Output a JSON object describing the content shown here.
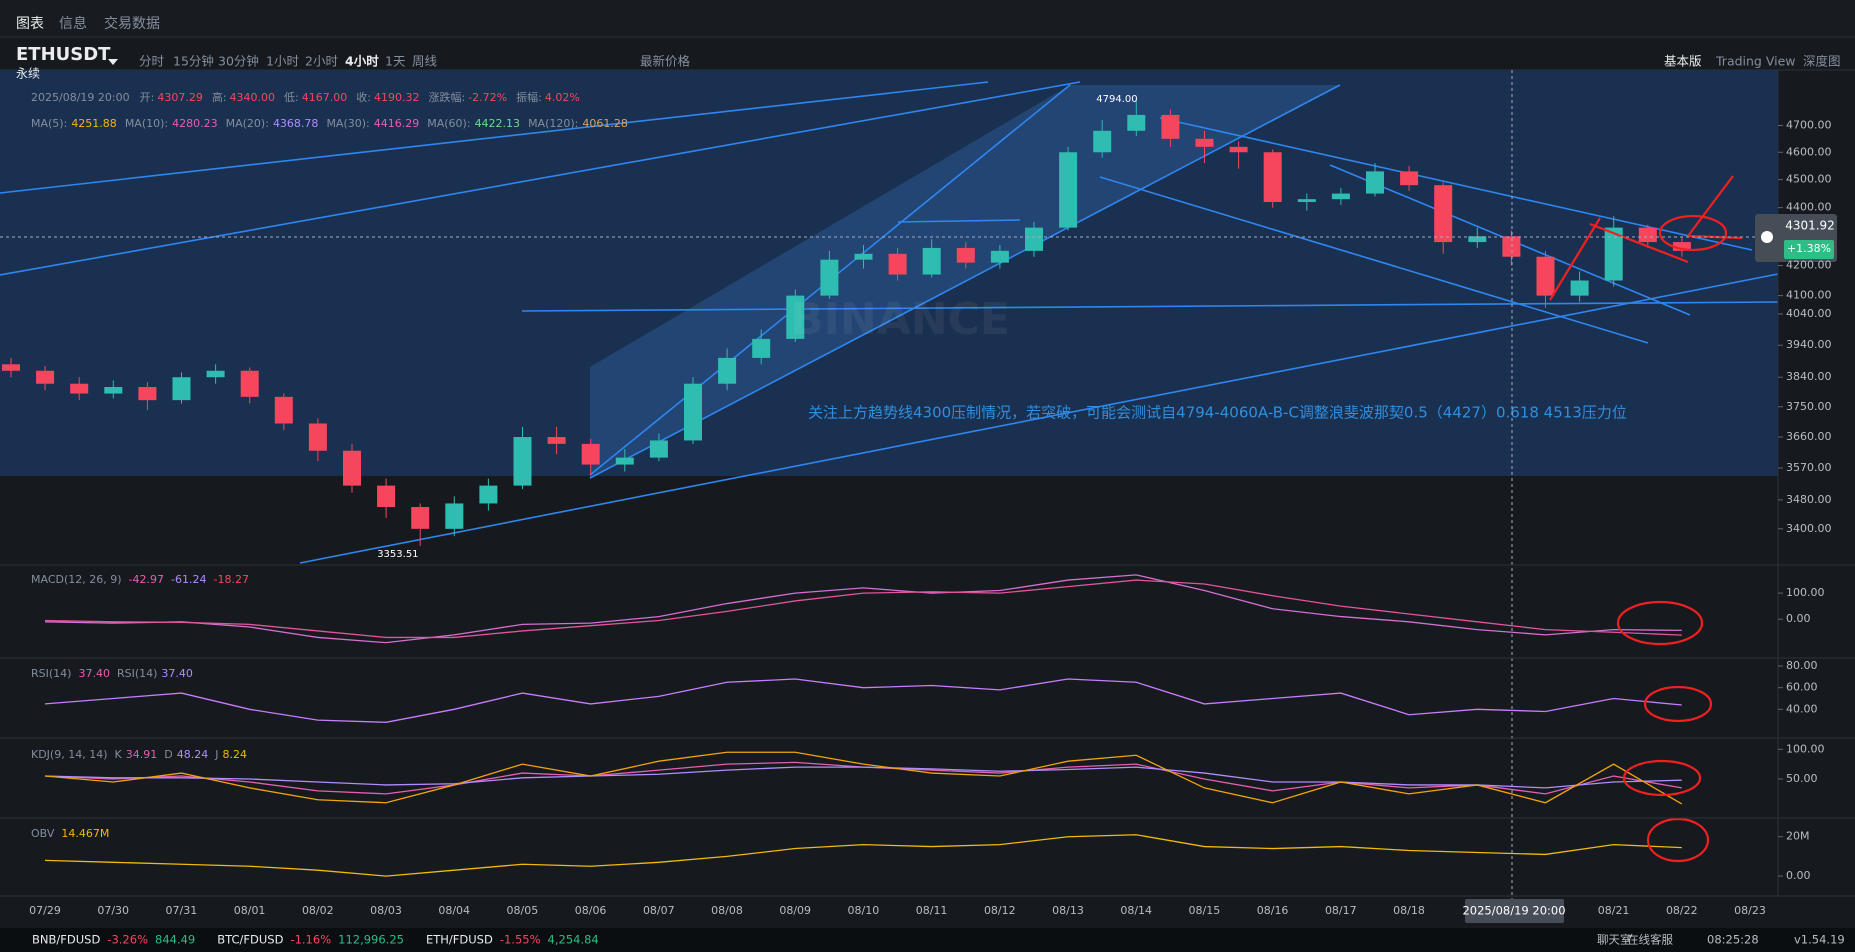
{
  "tabs": [
    "图表",
    "信息",
    "交易数据"
  ],
  "symbol": "ETHUSDT",
  "contract": "永续",
  "intervals": [
    "分时",
    "15分钟",
    "30分钟",
    "1小时",
    "2小时",
    "4小时",
    "1天",
    "周线",
    "最新价格"
  ],
  "views": [
    "基本版",
    "Trading View",
    "深度图"
  ],
  "ohlc_info": {
    "time": "2025/08/19 20:00",
    "items": [
      {
        "label": "开:",
        "value": "4307.29"
      },
      {
        "label": "高:",
        "value": "4340.00"
      },
      {
        "label": "低:",
        "value": "4167.00"
      },
      {
        "label": "收:",
        "value": "4190.32"
      },
      {
        "label": "涨跌幅:",
        "value": "-2.72%"
      },
      {
        "label": "振幅:",
        "value": "4.02%"
      }
    ]
  },
  "ma_info": [
    {
      "label": "MA(5):",
      "value": "4251.88",
      "color": "#f0b90b"
    },
    {
      "label": "MA(10):",
      "value": "4280.23",
      "color": "#e45fb1"
    },
    {
      "label": "MA(20):",
      "value": "4368.78",
      "color": "#b18cff"
    },
    {
      "label": "MA(30):",
      "value": "4416.29",
      "color": "#e45fb1"
    },
    {
      "label": "MA(60):",
      "value": "4422.13",
      "color": "#6fd98f"
    },
    {
      "label": "MA(120):",
      "value": "4061.28",
      "color": "#d8a36c"
    }
  ],
  "x_axis": {
    "categories": [
      "07/29",
      "07/30",
      "07/31",
      "08/01",
      "08/02",
      "08/03",
      "08/04",
      "08/05",
      "08/06",
      "08/07",
      "08/08",
      "08/09",
      "08/10",
      "08/11",
      "08/12",
      "08/13",
      "08/14",
      "08/15",
      "08/16",
      "08/17",
      "08/18",
      null,
      null,
      "08/21",
      "08/22",
      "08/23"
    ]
  },
  "chart_data": [
    {
      "type": "candlestick",
      "log_scale": true,
      "up_color": "#2ebdb0",
      "down_color": "#f6465d",
      "ylim": [
        3308,
        4863
      ],
      "yticks": [
        {
          "value": 4700,
          "label": "4700.00"
        },
        {
          "value": 4600,
          "label": "4600.00"
        },
        {
          "value": 4500,
          "label": "4500.00"
        },
        {
          "value": 4400,
          "label": "4400.00"
        },
        {
          "value": 4200,
          "label": "4200.00"
        },
        {
          "value": 4100,
          "label": "4100.00"
        },
        {
          "value": 4040,
          "label": "4040.00"
        },
        {
          "value": 3940,
          "label": "3940.00"
        },
        {
          "value": 3840,
          "label": "3840.00"
        },
        {
          "value": 3750,
          "label": "3750.00"
        },
        {
          "value": 3660,
          "label": "3660.00"
        },
        {
          "value": 3570,
          "label": "3570.00"
        },
        {
          "value": 3480,
          "label": "3480.00"
        },
        {
          "value": 3400,
          "label": "3400.00"
        }
      ],
      "candles": [
        [
          3880,
          3900,
          3840,
          3860
        ],
        [
          3860,
          3875,
          3800,
          3820
        ],
        [
          3820,
          3840,
          3770,
          3790
        ],
        [
          3790,
          3830,
          3775,
          3810
        ],
        [
          3810,
          3825,
          3740,
          3770
        ],
        [
          3770,
          3855,
          3760,
          3840
        ],
        [
          3840,
          3880,
          3820,
          3860
        ],
        [
          3860,
          3870,
          3760,
          3780
        ],
        [
          3780,
          3790,
          3680,
          3700
        ],
        [
          3700,
          3715,
          3590,
          3620
        ],
        [
          3620,
          3640,
          3500,
          3520
        ],
        [
          3520,
          3540,
          3430,
          3460
        ],
        [
          3460,
          3470,
          3353.51,
          3400
        ],
        [
          3400,
          3490,
          3380,
          3470
        ],
        [
          3470,
          3540,
          3450,
          3520
        ],
        [
          3520,
          3690,
          3510,
          3660
        ],
        [
          3660,
          3690,
          3610,
          3640
        ],
        [
          3640,
          3655,
          3550,
          3580
        ],
        [
          3580,
          3625,
          3560,
          3600
        ],
        [
          3600,
          3670,
          3590,
          3650
        ],
        [
          3650,
          3840,
          3640,
          3820
        ],
        [
          3820,
          3930,
          3800,
          3900
        ],
        [
          3900,
          3990,
          3880,
          3960
        ],
        [
          3960,
          4120,
          3950,
          4100
        ],
        [
          4100,
          4250,
          4090,
          4220
        ],
        [
          4220,
          4270,
          4190,
          4240
        ],
        [
          4240,
          4260,
          4150,
          4170
        ],
        [
          4170,
          4290,
          4160,
          4260
        ],
        [
          4260,
          4280,
          4190,
          4210
        ],
        [
          4210,
          4270,
          4190,
          4250
        ],
        [
          4250,
          4350,
          4230,
          4330
        ],
        [
          4330,
          4620,
          4320,
          4600
        ],
        [
          4600,
          4720,
          4580,
          4680
        ],
        [
          4680,
          4794,
          4660,
          4740
        ],
        [
          4740,
          4760,
          4620,
          4650
        ],
        [
          4650,
          4680,
          4560,
          4620
        ],
        [
          4620,
          4640,
          4540,
          4600
        ],
        [
          4600,
          4610,
          4400,
          4420
        ],
        [
          4420,
          4450,
          4390,
          4430
        ],
        [
          4430,
          4470,
          4410,
          4450
        ],
        [
          4450,
          4560,
          4440,
          4530
        ],
        [
          4530,
          4550,
          4460,
          4480
        ],
        [
          4480,
          4490,
          4240,
          4280
        ],
        [
          4280,
          4330,
          4260,
          4300
        ],
        [
          4300,
          4320,
          4200,
          4230
        ],
        [
          4230,
          4250,
          4060,
          4100
        ],
        [
          4100,
          4180,
          4080,
          4150
        ],
        [
          4150,
          4370,
          4130,
          4330
        ],
        [
          4330,
          4340,
          4260,
          4280
        ],
        [
          4280,
          4300,
          4230,
          4250
        ]
      ],
      "high_label": "4794.00",
      "low_label": "3353.51",
      "watermark": "BINANCE",
      "annotation": "关注上方趋势线4300压制情况，若突破，可能会测试自4794-4060A-B-C调整浪斐波那契0.5（4427）0.618 4513压力位"
    },
    {
      "type": "line",
      "title": "MACD(12, 26, 9)",
      "readouts": [
        {
          "value": "-42.97",
          "color": "#e45fb1"
        },
        {
          "value": "-61.24",
          "color": "#b18cff"
        },
        {
          "value": "-18.27",
          "color": "#f6465d"
        }
      ],
      "ylim": [
        -145,
        204
      ],
      "yticks": [
        {
          "value": 100,
          "label": "100.00"
        },
        {
          "value": 0,
          "label": "0.00"
        }
      ],
      "series": [
        {
          "color": "#d36fd0",
          "values": [
            -10,
            -15,
            -10,
            -30,
            -70,
            -90,
            -60,
            -20,
            -15,
            10,
            60,
            100,
            120,
            100,
            110,
            150,
            170,
            110,
            40,
            10,
            -10,
            -40,
            -60,
            -40,
            -43,
            null
          ]
        },
        {
          "color": "#e0559b",
          "values": [
            -5,
            -10,
            -12,
            -20,
            -45,
            -70,
            -70,
            -45,
            -25,
            -5,
            30,
            70,
            100,
            105,
            100,
            125,
            150,
            135,
            90,
            50,
            20,
            -10,
            -40,
            -50,
            -61,
            null
          ]
        }
      ]
    },
    {
      "type": "line",
      "title": "RSI(14)",
      "readouts": [
        {
          "value": "37.40",
          "color": "#e45fb1"
        },
        {
          "label": "RSI(14)",
          "value": "37.40",
          "color": "#b18cff"
        }
      ],
      "ylim": [
        14.4,
        85.6
      ],
      "yticks": [
        {
          "value": 80,
          "label": "80.00"
        },
        {
          "value": 60,
          "label": "60.00"
        },
        {
          "value": 40,
          "label": "40.00"
        }
      ],
      "series": [
        {
          "color": "#c77dff",
          "values": [
            45,
            50,
            55,
            40,
            30,
            28,
            40,
            55,
            45,
            52,
            65,
            68,
            60,
            62,
            58,
            68,
            65,
            45,
            50,
            55,
            35,
            40,
            38,
            50,
            44,
            null
          ]
        }
      ]
    },
    {
      "type": "line",
      "title": "KDJ(9, 14, 14)",
      "readouts": [
        {
          "label": "K",
          "value": "34.91",
          "color": "#e45fb1"
        },
        {
          "label": "D",
          "value": "48.24",
          "color": "#b18cff"
        },
        {
          "label": "J",
          "value": "8.24",
          "color": "#f0b90b"
        }
      ],
      "ylim": [
        -14,
        114
      ],
      "yticks": [
        {
          "value": 100,
          "label": "100.00"
        },
        {
          "value": 50,
          "label": "50.00"
        }
      ],
      "series": [
        {
          "color": "#e45fb1",
          "values": [
            55,
            50,
            55,
            45,
            30,
            25,
            40,
            60,
            55,
            65,
            75,
            78,
            70,
            65,
            60,
            70,
            75,
            50,
            30,
            45,
            35,
            40,
            25,
            55,
            35,
            null
          ]
        },
        {
          "color": "#b18cff",
          "values": [
            55,
            52,
            52,
            50,
            45,
            40,
            42,
            52,
            55,
            58,
            65,
            70,
            70,
            67,
            63,
            66,
            70,
            60,
            45,
            45,
            40,
            40,
            35,
            45,
            48,
            null
          ]
        },
        {
          "color": "#f0a30b",
          "values": [
            55,
            45,
            60,
            35,
            15,
            10,
            40,
            75,
            55,
            80,
            95,
            95,
            75,
            60,
            55,
            80,
            90,
            35,
            10,
            45,
            25,
            40,
            10,
            75,
            8,
            null
          ]
        }
      ]
    },
    {
      "type": "line",
      "title": "OBV",
      "readouts": [
        {
          "value": "14.467M",
          "color": "#f0b90b"
        }
      ],
      "ylim": [
        -9100000,
        28500000
      ],
      "yticks": [
        {
          "value": 20000000,
          "label": "20M"
        },
        {
          "value": 0,
          "label": "0.00"
        }
      ],
      "series": [
        {
          "color": "#f0b90b",
          "values": [
            8000000,
            7000000,
            6000000,
            5000000,
            3000000,
            0,
            3000000,
            6000000,
            5000000,
            7000000,
            10000000,
            14000000,
            16000000,
            15000000,
            16000000,
            20000000,
            21000000,
            15000000,
            14000000,
            15000000,
            13000000,
            12000000,
            11000000,
            16000000,
            14467000,
            null
          ]
        }
      ]
    }
  ],
  "price_tag": {
    "price": "4301.92",
    "change": "+1.38%"
  },
  "crosshair_time": "2025/08/19 20:00",
  "ticker": [
    {
      "pair": "BNB/FDUSD",
      "change": "-3.26%",
      "price": "844.49"
    },
    {
      "pair": "BTC/FDUSD",
      "change": "-1.16%",
      "price": "112,996.25"
    },
    {
      "pair": "ETH/FDUSD",
      "change": "-1.55%",
      "price": "4,254.84"
    }
  ],
  "footer": {
    "chat": "聊天室",
    "support": "在线客服",
    "time": "08:25:28",
    "version": "v1.54.19"
  }
}
